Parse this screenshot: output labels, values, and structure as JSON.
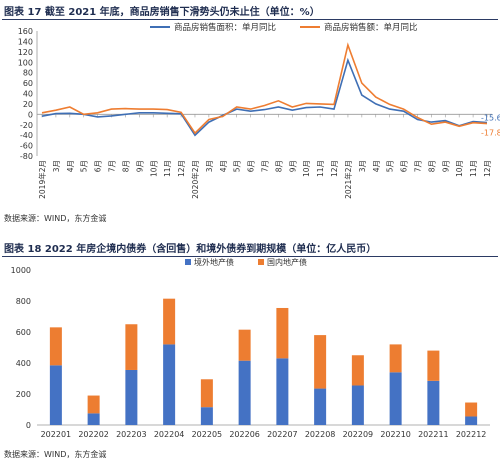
{
  "figure17": {
    "title": "图表 17   截至 2021 年底，商品房销售下滑势头仍未止住（单位：%）",
    "source": "数据来源：WIND，东方金诚"
  },
  "figure18": {
    "title": "图表 18   2022 年房企境内债券（含回售）和境外债券到期规模（单位：亿人民币）",
    "source": "数据来源：WIND，东方金诚"
  },
  "chart_data": [
    {
      "type": "line",
      "x": [
        "2019年2月",
        "3月",
        "4月",
        "5月",
        "6月",
        "7月",
        "8月",
        "9月",
        "10月",
        "11月",
        "12月",
        "2020年2月",
        "3月",
        "4月",
        "5月",
        "6月",
        "7月",
        "8月",
        "9月",
        "10月",
        "11月",
        "12月",
        "2021年2月",
        "3月",
        "4月",
        "5月",
        "6月",
        "7月",
        "8月",
        "9月",
        "10月",
        "11月",
        "12月"
      ],
      "ylim": [
        -80,
        160
      ],
      "yticks": [
        -80,
        -60,
        -40,
        -20,
        0,
        20,
        40,
        60,
        80,
        100,
        120,
        140,
        160
      ],
      "series": [
        {
          "name": "商品房销售面积：单月同比",
          "color": "#3f6fb5",
          "values": [
            -3.6,
            1.5,
            2,
            0,
            -5,
            -3,
            0,
            3,
            3,
            2,
            1,
            -40,
            -15,
            -2,
            10,
            6,
            9,
            14,
            8,
            13,
            14,
            10,
            104,
            37,
            20,
            10,
            6,
            -10,
            -15,
            -12,
            -22,
            -14,
            -15.6
          ]
        },
        {
          "name": "商品房销售额：单月同比",
          "color": "#ee7d31",
          "values": [
            3,
            8,
            14,
            0,
            3,
            10,
            11,
            10,
            10,
            9,
            4,
            -36,
            -10,
            -4,
            14,
            10,
            17,
            26,
            14,
            21,
            20,
            19,
            133,
            60,
            33,
            19,
            10,
            -6,
            -19,
            -15,
            -23,
            -16,
            -17.8
          ]
        }
      ],
      "annotations": [
        "-15.6",
        "-17.8"
      ]
    },
    {
      "type": "bar",
      "stacked": true,
      "categories": [
        "202201",
        "202202",
        "202203",
        "202204",
        "202205",
        "202206",
        "202207",
        "202208",
        "202209",
        "202210",
        "202211",
        "202212"
      ],
      "ylim": [
        0,
        1000
      ],
      "yticks": [
        0,
        200,
        400,
        600,
        800,
        1000
      ],
      "series": [
        {
          "name": "境外地产债",
          "color": "#4472c4",
          "values": [
            385,
            75,
            355,
            520,
            115,
            415,
            430,
            235,
            255,
            340,
            285,
            55
          ]
        },
        {
          "name": "国内地产债",
          "color": "#ed7d31",
          "values": [
            245,
            115,
            295,
            295,
            180,
            200,
            325,
            345,
            195,
            180,
            195,
            90
          ]
        }
      ]
    }
  ]
}
